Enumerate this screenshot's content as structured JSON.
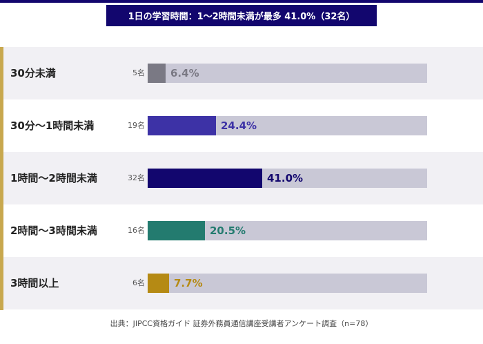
{
  "header": {
    "title": "1日の学習時間：1〜2時間未満が最多 41.0%（32名）"
  },
  "chart_data": {
    "type": "bar",
    "orientation": "horizontal",
    "categories": [
      "30分未満",
      "30分〜1時間未満",
      "1時間〜2時間未満",
      "2時間〜3時間未満",
      "3時間以上"
    ],
    "counts": [
      "5名",
      "19名",
      "32名",
      "16名",
      "6名"
    ],
    "values": [
      6.4,
      24.4,
      41.0,
      20.5,
      7.7
    ],
    "value_labels": [
      "6.4%",
      "24.4%",
      "41.0%",
      "20.5%",
      "7.7%"
    ],
    "colors": [
      "#7a7984",
      "#3d32a6",
      "#12066e",
      "#237b6f",
      "#b58a14"
    ],
    "xlim": [
      0,
      100
    ],
    "track_color": "#c9c8d6",
    "grid": false
  },
  "footer": {
    "source": "出典：JIPCC資格ガイド 証券外務員通信講座受講者アンケート調査（n=78）"
  }
}
